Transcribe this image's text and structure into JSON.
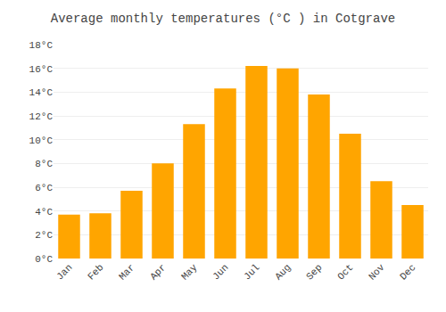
{
  "chart_data": {
    "type": "bar",
    "title": "Average monthly temperatures (°C ) in Cotgrave",
    "categories": [
      "Jan",
      "Feb",
      "Mar",
      "Apr",
      "May",
      "Jun",
      "Jul",
      "Aug",
      "Sep",
      "Oct",
      "Nov",
      "Dec"
    ],
    "values": [
      3.7,
      3.8,
      5.7,
      8.0,
      11.3,
      14.3,
      16.2,
      16.0,
      13.8,
      10.5,
      6.5,
      4.5
    ],
    "color": "#FFA500",
    "ylim": [
      0,
      18
    ],
    "yticks": [
      {
        "value": 0,
        "label": "0°C"
      },
      {
        "value": 2,
        "label": "2°C"
      },
      {
        "value": 4,
        "label": "4°C"
      },
      {
        "value": 6,
        "label": "6°C"
      },
      {
        "value": 8,
        "label": "8°C"
      },
      {
        "value": 10,
        "label": "10°C"
      },
      {
        "value": 12,
        "label": "12°C"
      },
      {
        "value": 14,
        "label": "14°C"
      },
      {
        "value": 16,
        "label": "16°C"
      },
      {
        "value": 18,
        "label": "18°C"
      }
    ],
    "grid": true
  }
}
